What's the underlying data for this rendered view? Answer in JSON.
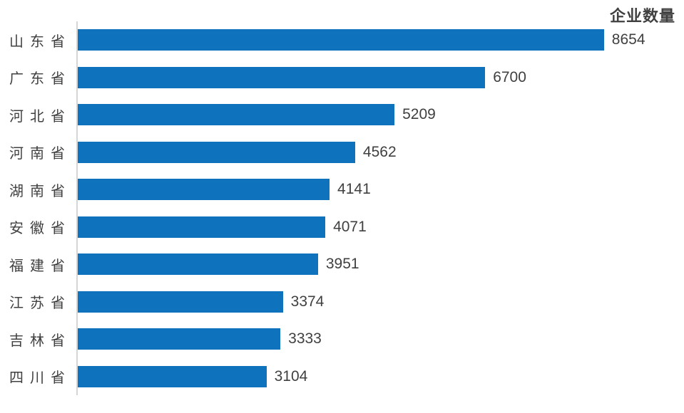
{
  "chart_data": {
    "type": "bar",
    "orientation": "horizontal",
    "title": "企业数量",
    "categories": [
      "山东省",
      "广东省",
      "河北省",
      "河南省",
      "湖南省",
      "安徽省",
      "福建省",
      "江苏省",
      "吉林省",
      "四川省"
    ],
    "values": [
      8654,
      6700,
      5209,
      4562,
      4141,
      4071,
      3951,
      3374,
      3333,
      3104
    ],
    "xlabel": "",
    "ylabel": "",
    "value_labels_shown": true,
    "gridlines": false,
    "legend": "none",
    "x_axis_tick_labels": "none",
    "bar_color": "#0f72bd",
    "text_color": "#404040",
    "axis_line_color": "#d6d6d6",
    "background_color": "#ffffff"
  }
}
